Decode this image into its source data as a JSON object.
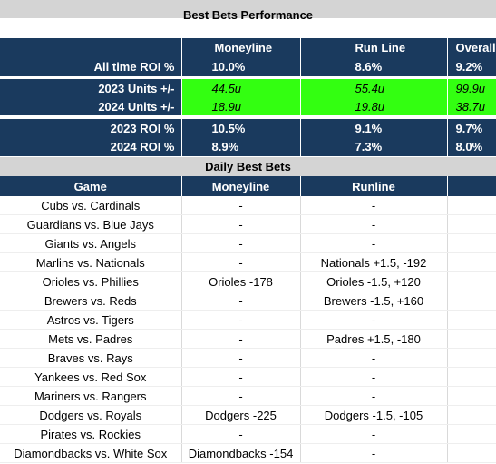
{
  "title": "Best Bets Performance",
  "summary": {
    "headers": [
      "",
      "Moneyline",
      "Run Line",
      "Overall"
    ],
    "all_time": {
      "label": "All time ROI %",
      "moneyline": "10.0%",
      "run_line": "8.6%",
      "overall": "9.2%"
    },
    "units_2023": {
      "label": "2023 Units +/-",
      "moneyline": "44.5u",
      "run_line": "55.4u",
      "overall": "99.9u"
    },
    "units_2024": {
      "label": "2024 Units +/-",
      "moneyline": "18.9u",
      "run_line": "19.8u",
      "overall": "38.7u"
    },
    "roi_2023": {
      "label": "2023 ROI %",
      "moneyline": "10.5%",
      "run_line": "9.1%",
      "overall": "9.7%"
    },
    "roi_2024": {
      "label": "2024 ROI %",
      "moneyline": "8.9%",
      "run_line": "7.3%",
      "overall": "8.0%"
    }
  },
  "daily": {
    "title": "Daily Best Bets",
    "headers": [
      "Game",
      "Moneyline",
      "Runline",
      ""
    ],
    "rows": [
      {
        "game": "Cubs vs. Cardinals",
        "moneyline": "-",
        "runline": "-"
      },
      {
        "game": "Guardians vs. Blue Jays",
        "moneyline": "-",
        "runline": "-"
      },
      {
        "game": "Giants vs. Angels",
        "moneyline": "-",
        "runline": "-"
      },
      {
        "game": "Marlins vs. Nationals",
        "moneyline": "-",
        "runline": "Nationals +1.5, -192"
      },
      {
        "game": "Orioles vs. Phillies",
        "moneyline": "Orioles -178",
        "runline": "Orioles -1.5, +120"
      },
      {
        "game": "Brewers vs. Reds",
        "moneyline": "-",
        "runline": "Brewers -1.5, +160"
      },
      {
        "game": "Astros vs. Tigers",
        "moneyline": "-",
        "runline": "-"
      },
      {
        "game": "Mets vs. Padres",
        "moneyline": "-",
        "runline": "Padres +1.5, -180"
      },
      {
        "game": "Braves vs. Rays",
        "moneyline": "-",
        "runline": "-"
      },
      {
        "game": "Yankees vs. Red Sox",
        "moneyline": "-",
        "runline": "-"
      },
      {
        "game": "Mariners vs. Rangers",
        "moneyline": "-",
        "runline": "-"
      },
      {
        "game": "Dodgers vs. Royals",
        "moneyline": "Dodgers -225",
        "runline": "Dodgers -1.5, -105"
      },
      {
        "game": "Pirates vs. Rockies",
        "moneyline": "-",
        "runline": "-"
      },
      {
        "game": "Diamondbacks vs. White Sox",
        "moneyline": "Diamondbacks -154",
        "runline": "-"
      }
    ]
  },
  "colors": {
    "navy": "#1a3a5e",
    "green": "#33ff11",
    "gray": "#d4d4d4"
  }
}
